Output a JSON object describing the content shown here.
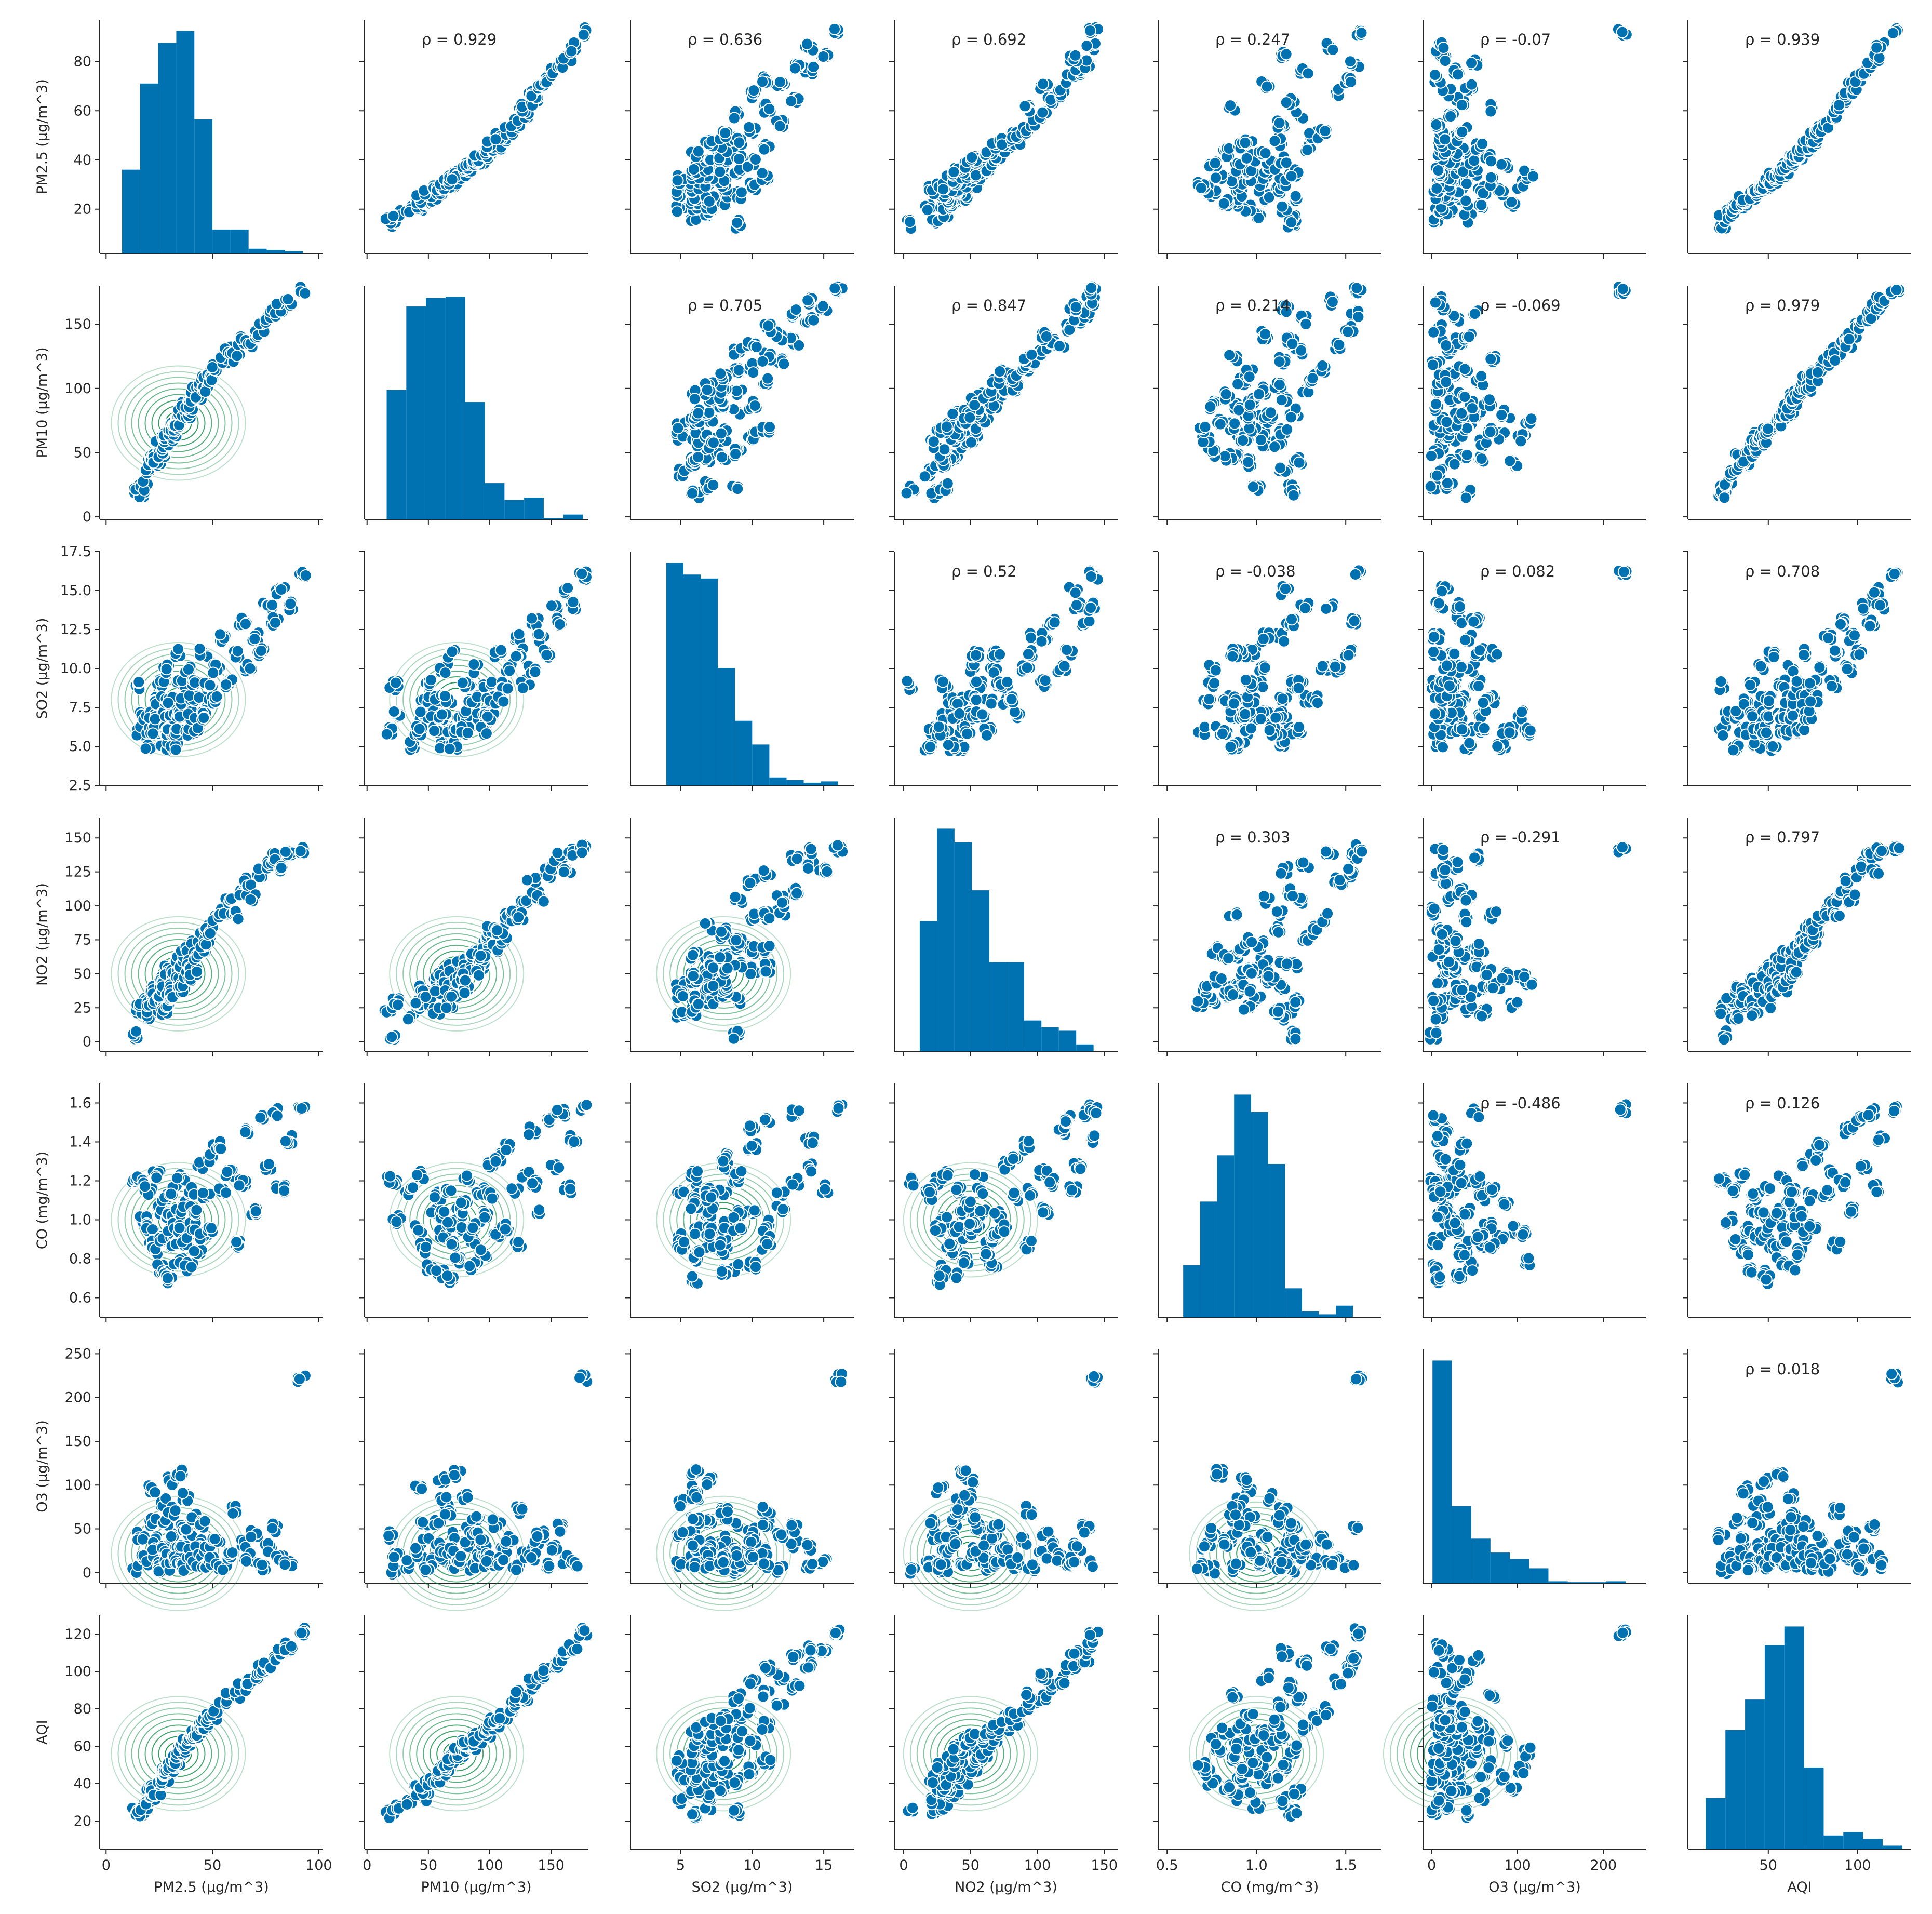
{
  "chart_data": {
    "type": "scatter",
    "layout": "pair-grid",
    "variables": [
      "PM2.5 (µg/m^3)",
      "PM10 (µg/m^3)",
      "SO2 (µg/m^3)",
      "NO2 (µg/m^3)",
      "CO (mg/m^3)",
      "O3 (µg/m^3)",
      "AQI"
    ],
    "diagonal": "histogram",
    "upper": "scatter with spearman rho",
    "lower": "scatter with kde contours",
    "colors": {
      "points": "#0072b2",
      "hist": "#0072b2",
      "kde": "#00873c",
      "axis": "#262626"
    },
    "axes": [
      {
        "lim": [
          -3,
          102
        ],
        "ticks": [
          0,
          50,
          100
        ],
        "tick_labels": [
          "0",
          "50",
          "100"
        ],
        "ylim": [
          2,
          97
        ],
        "yticks": [
          20,
          40,
          60,
          80
        ],
        "ytick_labels": [
          "20",
          "40",
          "60",
          "80"
        ]
      },
      {
        "lim": [
          -2,
          180
        ],
        "ticks": [
          0,
          50,
          100,
          150
        ],
        "tick_labels": [
          "0",
          "50",
          "100",
          "150"
        ]
      },
      {
        "lim": [
          1.5,
          17.1
        ],
        "ticks": [
          5,
          10,
          15
        ],
        "tick_labels": [
          "5",
          "10",
          "15"
        ],
        "ylim": [
          2.5,
          17.5
        ],
        "yticks": [
          2.5,
          5.0,
          7.5,
          10.0,
          12.5,
          15.0,
          17.5
        ],
        "ytick_labels": [
          "2.5",
          "5.0",
          "7.5",
          "10.0",
          "12.5",
          "15.0",
          "17.5"
        ]
      },
      {
        "lim": [
          -7,
          160
        ],
        "ticks": [
          0,
          50,
          100,
          150
        ],
        "tick_labels": [
          "0",
          "50",
          "100",
          "150"
        ],
        "ylim": [
          -7,
          165
        ],
        "yticks": [
          0,
          25,
          50,
          75,
          100,
          125,
          150
        ],
        "ytick_labels": [
          "0",
          "25",
          "50",
          "75",
          "100",
          "125",
          "150"
        ]
      },
      {
        "lim": [
          0.45,
          1.7
        ],
        "ticks": [
          0.5,
          1.0,
          1.5
        ],
        "tick_labels": [
          "0.5",
          "1.0",
          "1.5"
        ],
        "ylim": [
          0.5,
          1.7
        ],
        "yticks": [
          0.6,
          0.8,
          1.0,
          1.2,
          1.4,
          1.6
        ],
        "ytick_labels": [
          "0.6",
          "0.8",
          "1.0",
          "1.2",
          "1.4",
          "1.6"
        ]
      },
      {
        "lim": [
          -10,
          250
        ],
        "ticks": [
          0,
          100,
          200
        ],
        "tick_labels": [
          "0",
          "100",
          "200"
        ],
        "ylim": [
          -12,
          255
        ],
        "yticks": [
          0,
          50,
          100,
          150,
          200,
          250
        ],
        "ytick_labels": [
          "0",
          "50",
          "100",
          "150",
          "200",
          "250"
        ]
      },
      {
        "lim": [
          5,
          130
        ],
        "ticks": [
          50,
          100
        ],
        "tick_labels": [
          "50",
          "100"
        ],
        "ylim": [
          5,
          130
        ],
        "yticks": [
          20,
          40,
          60,
          80,
          100,
          120
        ],
        "ytick_labels": [
          "20",
          "40",
          "60",
          "80",
          "100",
          "120"
        ]
      }
    ],
    "rho": [
      [
        null,
        "ρ = 0.929",
        "ρ = 0.636",
        "ρ = 0.692",
        "ρ = 0.247",
        "ρ = -0.07",
        "ρ = 0.939"
      ],
      [
        null,
        null,
        "ρ = 0.705",
        "ρ = 0.847",
        "ρ = 0.214",
        "ρ = -0.069",
        "ρ = 0.979"
      ],
      [
        null,
        null,
        null,
        "ρ = 0.52",
        "ρ = -0.038",
        "ρ = 0.082",
        "ρ = 0.708"
      ],
      [
        null,
        null,
        null,
        null,
        "ρ = 0.303",
        "ρ = -0.291",
        "ρ = 0.797"
      ],
      [
        null,
        null,
        null,
        null,
        null,
        "ρ = -0.486",
        "ρ = 0.126"
      ],
      [
        null,
        null,
        null,
        null,
        null,
        null,
        "ρ = 0.018"
      ],
      [
        null,
        null,
        null,
        null,
        null,
        null,
        null
      ]
    ],
    "hists": [
      {
        "edges": [
          7.5,
          16,
          24.5,
          33,
          41.5,
          50,
          58.5,
          67,
          75.5,
          84,
          92.5
        ],
        "heights": [
          35,
          71,
          88,
          93,
          56,
          10,
          10,
          2,
          1.5,
          1
        ]
      },
      {
        "edges": [
          16,
          32,
          48,
          64,
          80,
          96,
          112,
          128,
          144,
          160,
          176
        ],
        "heights": [
          107,
          176,
          183,
          184,
          97,
          30,
          16,
          18,
          1,
          4
        ]
      },
      {
        "edges": [
          4,
          5.2,
          6.4,
          7.6,
          8.8,
          10,
          11.2,
          12.4,
          13.6,
          14.8,
          16
        ],
        "heights": [
          169,
          160,
          157,
          89,
          49,
          31,
          6,
          4,
          2,
          3
        ]
      },
      {
        "edges": [
          12,
          25,
          38,
          51,
          64,
          77,
          90,
          103,
          116,
          129,
          142
        ],
        "heights": [
          38,
          65,
          61,
          47,
          26,
          26,
          9,
          7,
          6,
          2
        ]
      },
      {
        "edges": [
          0.59,
          0.685,
          0.78,
          0.875,
          0.97,
          1.065,
          1.16,
          1.255,
          1.35,
          1.445,
          1.54
        ],
        "heights": [
          18,
          40,
          56,
          77,
          71,
          53,
          10,
          2,
          1,
          4
        ]
      },
      {
        "edges": [
          1,
          23.5,
          46,
          68.5,
          91,
          113.5,
          136,
          158.5,
          181,
          203.5,
          226
        ],
        "heights": [
          240,
          83,
          48,
          33,
          26,
          16,
          2,
          1,
          1,
          2
        ]
      },
      {
        "edges": [
          15,
          26,
          37,
          48,
          59,
          70,
          81,
          92,
          103,
          114,
          125
        ],
        "heights": [
          30,
          70,
          88,
          120,
          131,
          48,
          8,
          10,
          6,
          2
        ]
      }
    ],
    "points": [
      [
        14,
        22,
        8.9,
        5,
        1.2,
        3,
        25
      ],
      [
        16,
        18,
        6,
        24,
        1.2,
        42,
        24
      ],
      [
        18,
        24,
        7,
        30,
        1.0,
        20,
        28
      ],
      [
        20,
        35,
        5,
        19,
        1.15,
        9,
        31
      ],
      [
        21,
        42,
        6,
        27,
        0.95,
        95,
        37
      ],
      [
        22,
        46,
        7,
        38,
        0.88,
        58,
        33
      ],
      [
        23,
        47,
        8,
        35,
        0.84,
        37,
        37
      ],
      [
        24,
        43,
        6,
        31,
        1.23,
        23,
        36
      ],
      [
        25,
        56,
        7,
        45,
        1.05,
        12,
        42
      ],
      [
        26,
        50,
        9,
        30,
        0.75,
        4,
        41
      ],
      [
        27,
        63,
        5,
        42,
        0.91,
        81,
        44
      ],
      [
        28,
        57,
        6,
        22,
        1.12,
        59,
        43
      ],
      [
        28,
        59,
        8,
        38,
        0.72,
        31,
        46
      ],
      [
        29,
        63,
        10,
        53,
        1.03,
        19,
        47
      ],
      [
        30,
        68,
        6,
        28,
        0.69,
        7,
        49
      ],
      [
        30,
        61,
        7,
        50,
        0.93,
        105,
        48
      ],
      [
        31,
        66,
        8,
        41,
        1.15,
        70,
        50
      ],
      [
        32,
        70,
        5,
        35,
        0.87,
        42,
        53
      ],
      [
        33,
        69,
        11,
        54,
        0.98,
        24,
        52
      ],
      [
        34,
        76,
        7,
        60,
        1.04,
        14,
        56
      ],
      [
        34,
        73,
        6,
        45,
        0.79,
        113,
        57
      ],
      [
        35,
        81,
        9,
        56,
        1.21,
        52,
        58
      ],
      [
        36,
        80,
        7,
        39,
        0.95,
        32,
        59
      ],
      [
        37,
        86,
        8,
        64,
        0.89,
        6,
        60
      ],
      [
        38,
        80,
        6,
        48,
        1.08,
        86,
        62
      ],
      [
        39,
        87,
        10,
        67,
        0.76,
        46,
        63
      ],
      [
        40,
        93,
        7,
        57,
        1.15,
        22,
        64
      ],
      [
        41,
        89,
        8,
        52,
        0.97,
        65,
        65
      ],
      [
        42,
        98,
        9,
        71,
        1.03,
        11,
        67
      ],
      [
        43,
        95,
        6,
        63,
        0.83,
        34,
        68
      ],
      [
        45,
        100,
        8,
        77,
        1.28,
        17,
        70
      ],
      [
        46,
        106,
        11,
        69,
        0.92,
        56,
        71
      ],
      [
        47,
        101,
        7,
        84,
        1.12,
        8,
        73
      ],
      [
        48,
        112,
        9,
        75,
        0.96,
        25,
        75
      ],
      [
        50,
        108,
        8,
        82,
        1.32,
        13,
        76
      ],
      [
        52,
        116,
        10,
        91,
        1.38,
        37,
        79
      ],
      [
        55,
        121,
        12,
        96,
        1.14,
        5,
        83
      ],
      [
        58,
        129,
        9,
        104,
        1.24,
        21,
        86
      ],
      [
        61,
        124,
        11,
        93,
        0.87,
        71,
        88
      ],
      [
        64,
        137,
        13,
        110,
        1.19,
        33,
        92
      ],
      [
        67,
        134,
        10,
        118,
        1.46,
        18,
        95
      ],
      [
        70,
        141,
        12,
        105,
        1.05,
        43,
        97
      ],
      [
        73,
        147,
        11,
        124,
        1.52,
        7,
        101
      ],
      [
        76,
        153,
        14,
        130,
        1.27,
        29,
        104
      ],
      [
        79,
        158,
        13,
        136,
        1.55,
        51,
        107
      ],
      [
        82,
        163,
        15,
        127,
        1.16,
        15,
        110
      ],
      [
        86,
        168,
        14,
        140,
        1.41,
        9,
        113
      ],
      [
        92,
        176,
        16,
        142,
        1.57,
        222,
        121
      ]
    ]
  }
}
